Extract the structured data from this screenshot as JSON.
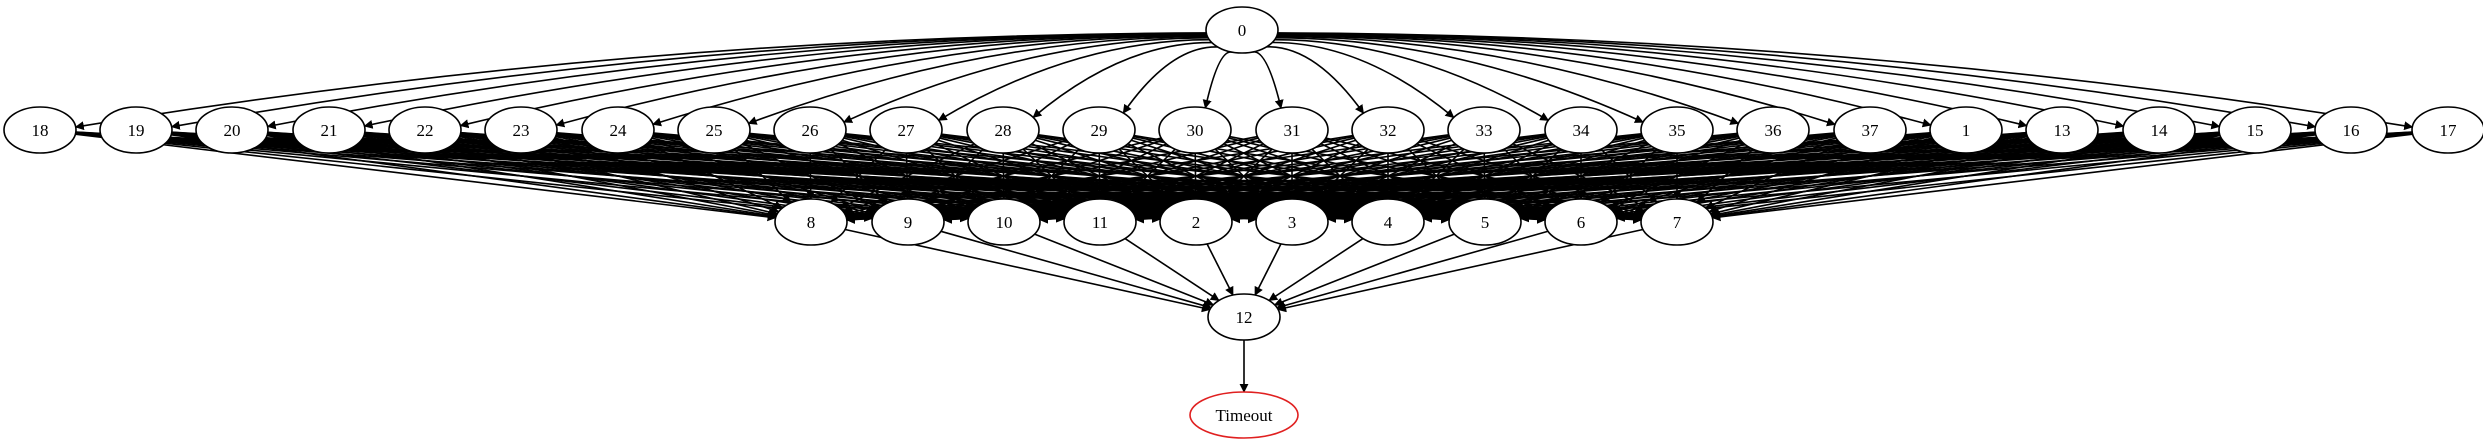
{
  "graph": {
    "colors": {
      "edge": "#000000",
      "node_border": "#000000",
      "terminal_border": "#e02020",
      "background": "#ffffff"
    },
    "nodes": [
      {
        "id": "0",
        "label": "0"
      },
      {
        "id": "18",
        "label": "18"
      },
      {
        "id": "19",
        "label": "19"
      },
      {
        "id": "20",
        "label": "20"
      },
      {
        "id": "21",
        "label": "21"
      },
      {
        "id": "22",
        "label": "22"
      },
      {
        "id": "23",
        "label": "23"
      },
      {
        "id": "24",
        "label": "24"
      },
      {
        "id": "25",
        "label": "25"
      },
      {
        "id": "26",
        "label": "26"
      },
      {
        "id": "27",
        "label": "27"
      },
      {
        "id": "28",
        "label": "28"
      },
      {
        "id": "29",
        "label": "29"
      },
      {
        "id": "30",
        "label": "30"
      },
      {
        "id": "31",
        "label": "31"
      },
      {
        "id": "32",
        "label": "32"
      },
      {
        "id": "33",
        "label": "33"
      },
      {
        "id": "34",
        "label": "34"
      },
      {
        "id": "35",
        "label": "35"
      },
      {
        "id": "36",
        "label": "36"
      },
      {
        "id": "37",
        "label": "37"
      },
      {
        "id": "1",
        "label": "1"
      },
      {
        "id": "13",
        "label": "13"
      },
      {
        "id": "14",
        "label": "14"
      },
      {
        "id": "15",
        "label": "15"
      },
      {
        "id": "16",
        "label": "16"
      },
      {
        "id": "17",
        "label": "17"
      },
      {
        "id": "8",
        "label": "8"
      },
      {
        "id": "9",
        "label": "9"
      },
      {
        "id": "10",
        "label": "10"
      },
      {
        "id": "11",
        "label": "11"
      },
      {
        "id": "2",
        "label": "2"
      },
      {
        "id": "3",
        "label": "3"
      },
      {
        "id": "4",
        "label": "4"
      },
      {
        "id": "5",
        "label": "5"
      },
      {
        "id": "6",
        "label": "6"
      },
      {
        "id": "7",
        "label": "7"
      },
      {
        "id": "12",
        "label": "12"
      },
      {
        "id": "timeout",
        "label": "Timeout",
        "terminal": true
      }
    ],
    "edges_from_root": [
      "18",
      "19",
      "20",
      "21",
      "22",
      "23",
      "24",
      "25",
      "26",
      "27",
      "28",
      "29",
      "30",
      "31",
      "32",
      "33",
      "34",
      "35",
      "36",
      "37",
      "1",
      "13",
      "14",
      "15",
      "16",
      "17"
    ],
    "middle_layer": [
      "18",
      "19",
      "20",
      "21",
      "22",
      "23",
      "24",
      "25",
      "26",
      "27",
      "28",
      "29",
      "30",
      "31",
      "32",
      "33",
      "34",
      "35",
      "36",
      "37",
      "1",
      "13",
      "14",
      "15",
      "16",
      "17"
    ],
    "bottom_layer": [
      "8",
      "9",
      "10",
      "11",
      "2",
      "3",
      "4",
      "5",
      "6",
      "7"
    ],
    "collector": "12",
    "terminal": "timeout"
  }
}
